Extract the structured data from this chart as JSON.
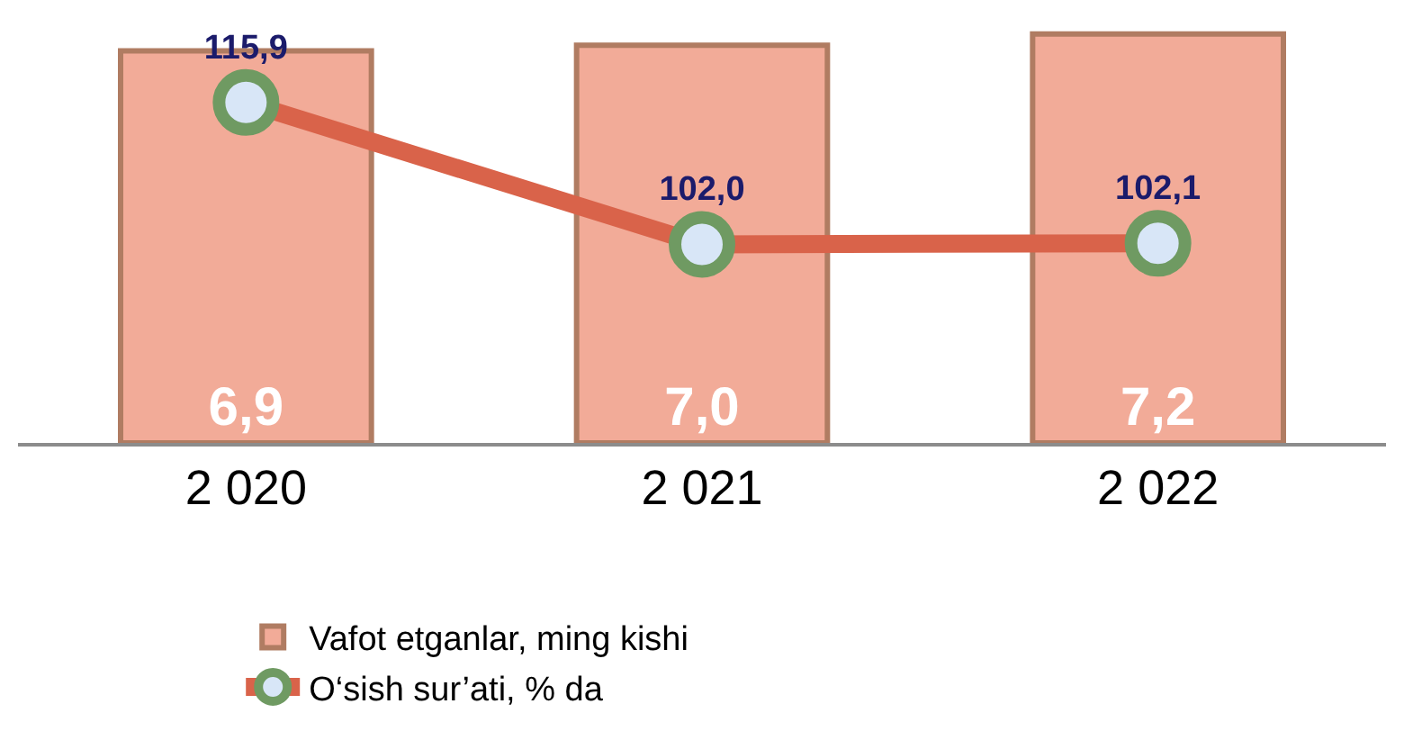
{
  "chart_data": {
    "type": "bar",
    "categories": [
      "2 020",
      "2 021",
      "2 022"
    ],
    "series": [
      {
        "name": "Vafot etganlar, ming kishi",
        "color": "#f2ab98",
        "values": [
          6.9,
          7.0,
          7.2
        ],
        "value_labels": [
          "6,9",
          "7,0",
          "7,2"
        ]
      },
      {
        "type": "line",
        "axis": "y2",
        "name": "O‘sish sur’ati, % da",
        "color": "#d9634a",
        "values": [
          115.9,
          102.0,
          102.1
        ],
        "value_labels": [
          "115,9",
          "102,0",
          "102,1"
        ]
      }
    ],
    "marker": "circle",
    "legend": "bottom",
    "grid": false,
    "tick_labels": "x"
  }
}
